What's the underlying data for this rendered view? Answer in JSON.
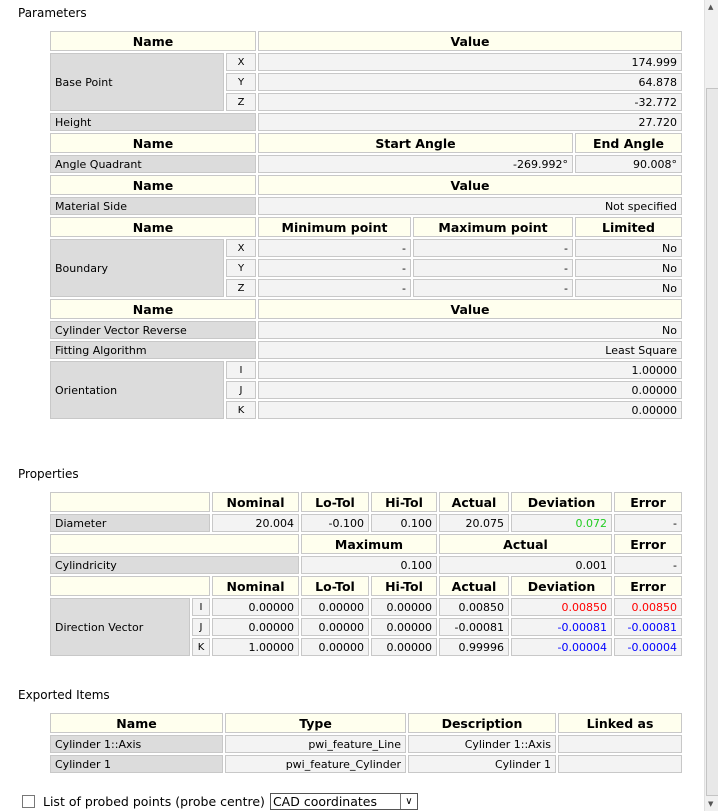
{
  "sections": {
    "parameters": "Parameters",
    "properties": "Properties",
    "exported": "Exported Items"
  },
  "parameters": {
    "h_name": "Name",
    "h_value": "Value",
    "h_start": "Start Angle",
    "h_end": "End Angle",
    "h_min": "Minimum point",
    "h_max": "Maximum point",
    "h_limited": "Limited",
    "base_point": {
      "label": "Base Point",
      "x": "174.999",
      "y": "64.878",
      "z": "-32.772"
    },
    "height": {
      "label": "Height",
      "value": "27.720"
    },
    "angle": {
      "label": "Angle Quadrant",
      "start": "-269.992°",
      "end": "90.008°"
    },
    "material": {
      "label": "Material Side",
      "value": "Not specified"
    },
    "boundary": {
      "label": "Boundary",
      "rows": [
        {
          "axis": "X",
          "min": "-",
          "max": "-",
          "limited": "No"
        },
        {
          "axis": "Y",
          "min": "-",
          "max": "-",
          "limited": "No"
        },
        {
          "axis": "Z",
          "min": "-",
          "max": "-",
          "limited": "No"
        }
      ]
    },
    "reverse": {
      "label": "Cylinder Vector Reverse",
      "value": "No"
    },
    "fitting": {
      "label": "Fitting Algorithm",
      "value": "Least Square"
    },
    "orientation": {
      "label": "Orientation",
      "i": "1.00000",
      "j": "0.00000",
      "k": "0.00000"
    },
    "axes": {
      "x": "X",
      "y": "Y",
      "z": "Z",
      "i": "I",
      "j": "J",
      "k": "K"
    }
  },
  "properties": {
    "h_nominal": "Nominal",
    "h_lotol": "Lo-Tol",
    "h_hitol": "Hi-Tol",
    "h_actual": "Actual",
    "h_deviation": "Deviation",
    "h_error": "Error",
    "h_maximum": "Maximum",
    "diameter": {
      "label": "Diameter",
      "nominal": "20.004",
      "lotol": "-0.100",
      "hitol": "0.100",
      "actual": "20.075",
      "deviation": "0.072",
      "error": "-"
    },
    "cylindricity": {
      "label": "Cylindricity",
      "maximum": "0.100",
      "actual": "0.001",
      "error": "-"
    },
    "direction": {
      "label": "Direction Vector",
      "rows": [
        {
          "axis": "I",
          "nominal": "0.00000",
          "lotol": "0.00000",
          "hitol": "0.00000",
          "actual": "0.00850",
          "deviation": "0.00850",
          "error": "0.00850"
        },
        {
          "axis": "J",
          "nominal": "0.00000",
          "lotol": "0.00000",
          "hitol": "0.00000",
          "actual": "-0.00081",
          "deviation": "-0.00081",
          "error": "-0.00081"
        },
        {
          "axis": "K",
          "nominal": "1.00000",
          "lotol": "0.00000",
          "hitol": "0.00000",
          "actual": "0.99996",
          "deviation": "-0.00004",
          "error": "-0.00004"
        }
      ]
    },
    "colors": {
      "in_tol": "#22cc22",
      "out_tol": "#ff0000",
      "negative": "#0000ff"
    }
  },
  "exported": {
    "h_name": "Name",
    "h_type": "Type",
    "h_desc": "Description",
    "h_linked": "Linked as",
    "rows": [
      {
        "name": "Cylinder 1::Axis",
        "type": "pwi_feature_Line",
        "desc": "Cylinder 1::Axis",
        "linked": ""
      },
      {
        "name": "Cylinder 1",
        "type": "pwi_feature_Cylinder",
        "desc": "Cylinder 1",
        "linked": ""
      }
    ]
  },
  "footer": {
    "checkbox_label": "List of probed points (probe centre)",
    "select_value": "CAD coordinates",
    "checked": false
  }
}
